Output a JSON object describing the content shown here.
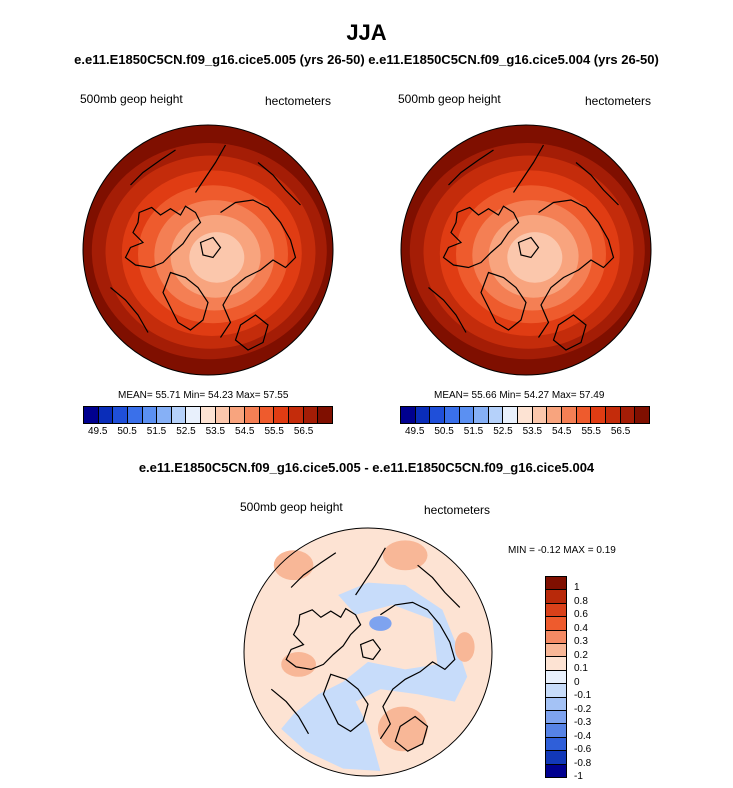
{
  "title": "JJA",
  "subtitle": "e.e11.E1850C5CN.f09_g16.cice5.005 (yrs 26-50)  e.e11.E1850C5CN.f09_g16.cice5.004 (yrs 26-50)",
  "panels": [
    {
      "left_label": "500mb geop height",
      "right_label": "hectometers",
      "stats": "MEAN=  55.71  Min=  54.23  Max=  57.55",
      "colorbar_ticks": [
        "49.5",
        "50.5",
        "51.5",
        "52.5",
        "53.5",
        "54.5",
        "55.5",
        "56.5"
      ]
    },
    {
      "left_label": "500mb geop height",
      "right_label": "hectometers",
      "stats": "MEAN=  55.66  Min=  54.27  Max=  57.49",
      "colorbar_ticks": [
        "49.5",
        "50.5",
        "51.5",
        "52.5",
        "53.5",
        "54.5",
        "55.5",
        "56.5"
      ]
    }
  ],
  "diff": {
    "title": "e.e11.E1850C5CN.f09_g16.cice5.005 - e.e11.E1850C5CN.f09_g16.cice5.004",
    "left_label": "500mb geop height",
    "right_label": "hectometers",
    "stats": "MIN =  -0.12 MAX =   0.19",
    "colorbar_ticks": [
      "1",
      "0.8",
      "0.6",
      "0.4",
      "0.3",
      "0.2",
      "0.1",
      "0",
      "-0.1",
      "-0.2",
      "-0.3",
      "-0.4",
      "-0.6",
      "-0.8",
      "-1"
    ]
  },
  "colors": {
    "field_scale": [
      "#00008f",
      "#0a2db9",
      "#1f4fd9",
      "#3a70ea",
      "#5b90f2",
      "#86b0f6",
      "#b5d1fa",
      "#e8f0fc",
      "#fde3d3",
      "#fbc7ac",
      "#f8a47e",
      "#f47f54",
      "#ee5b2d",
      "#e03c13",
      "#c42c0b",
      "#a41d06",
      "#7f0f00"
    ],
    "diff_scale": [
      "#7f0f00",
      "#b8290a",
      "#d9411a",
      "#ee5b2d",
      "#f48a64",
      "#f8b797",
      "#fde3d3",
      "#e8f0fc",
      "#c7dcfa",
      "#a4c2f5",
      "#7ea3ef",
      "#5683e6",
      "#2f5fd9",
      "#1238b8",
      "#00008f"
    ],
    "coastline": "#000000"
  }
}
